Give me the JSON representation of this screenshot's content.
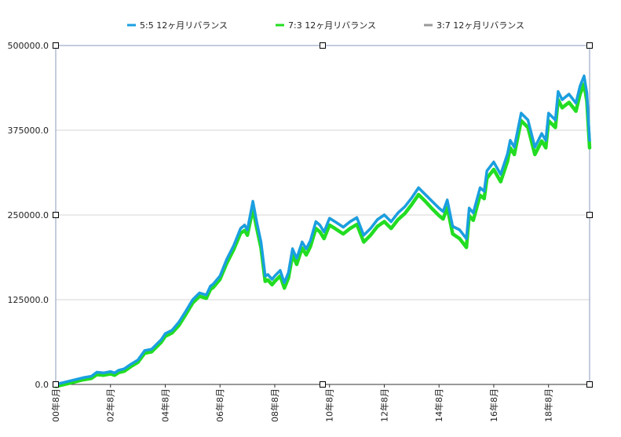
{
  "chart_data": {
    "type": "line",
    "title": "",
    "xlabel": "",
    "ylabel": "",
    "ylim": [
      0,
      500000
    ],
    "y_ticks": [
      0,
      125000,
      250000,
      375000,
      500000
    ],
    "y_tick_labels": [
      "0.0",
      "125000.0",
      "250000.0",
      "375000.0",
      "500000.0"
    ],
    "x_range": [
      0,
      19.5
    ],
    "x_ticks": [
      0,
      2,
      4,
      6,
      8,
      10,
      12,
      14,
      16,
      18
    ],
    "x_tick_labels": [
      "00年8月",
      "02年8月",
      "04年8月",
      "06年8月",
      "08年8月",
      "10年8月",
      "12年8月",
      "14年8月",
      "16年8月",
      "18年8月"
    ],
    "grid": true,
    "legend_position": "top-center",
    "series": [
      {
        "name": "5:5 12ヶ月リバランス",
        "color": "#1a9fe0",
        "x": [
          0,
          0.5,
          1,
          1.3,
          1.5,
          1.75,
          2,
          2.15,
          2.3,
          2.5,
          2.75,
          3,
          3.25,
          3.5,
          3.7,
          3.85,
          4,
          4.25,
          4.5,
          4.75,
          5,
          5.25,
          5.5,
          5.65,
          5.75,
          6,
          6.25,
          6.5,
          6.75,
          6.9,
          7,
          7.2,
          7.35,
          7.5,
          7.65,
          7.75,
          7.9,
          8,
          8.2,
          8.35,
          8.5,
          8.65,
          8.8,
          9,
          9.15,
          9.3,
          9.5,
          9.65,
          9.8,
          10,
          10.2,
          10.5,
          10.75,
          11,
          11.25,
          11.5,
          11.75,
          12,
          12.25,
          12.5,
          12.75,
          13,
          13.25,
          13.5,
          13.75,
          14,
          14.15,
          14.3,
          14.5,
          14.75,
          15,
          15.1,
          15.25,
          15.5,
          15.65,
          15.75,
          16,
          16.25,
          16.5,
          16.6,
          16.75,
          17,
          17.25,
          17.5,
          17.75,
          17.9,
          18,
          18.25,
          18.35,
          18.5,
          18.65,
          18.75,
          19,
          19.15,
          19.3,
          19.4,
          19.5
        ],
        "y": [
          0,
          5000,
          10000,
          12000,
          18000,
          17000,
          19000,
          17000,
          21000,
          23000,
          30000,
          36000,
          50000,
          52000,
          60000,
          66000,
          75000,
          80000,
          92000,
          108000,
          125000,
          135000,
          132000,
          145000,
          148000,
          160000,
          185000,
          205000,
          230000,
          235000,
          228000,
          270000,
          238000,
          210000,
          160000,
          162000,
          155000,
          160000,
          168000,
          150000,
          165000,
          200000,
          186000,
          210000,
          200000,
          212000,
          240000,
          235000,
          225000,
          245000,
          240000,
          232000,
          240000,
          246000,
          220000,
          230000,
          243000,
          250000,
          240000,
          253000,
          262000,
          275000,
          290000,
          280000,
          270000,
          260000,
          255000,
          272000,
          233000,
          228000,
          215000,
          260000,
          253000,
          290000,
          285000,
          315000,
          328000,
          310000,
          340000,
          360000,
          350000,
          400000,
          390000,
          350000,
          370000,
          360000,
          400000,
          390000,
          432000,
          420000,
          425000,
          428000,
          415000,
          440000,
          455000,
          430000,
          360000
        ]
      },
      {
        "name": "7:3 12ヶ月リバランス",
        "color": "#22dd22",
        "x": [
          0,
          0.5,
          1,
          1.3,
          1.5,
          1.75,
          2,
          2.15,
          2.3,
          2.5,
          2.75,
          3,
          3.25,
          3.5,
          3.7,
          3.85,
          4,
          4.25,
          4.5,
          4.75,
          5,
          5.25,
          5.5,
          5.65,
          5.75,
          6,
          6.25,
          6.5,
          6.75,
          6.9,
          7,
          7.2,
          7.35,
          7.5,
          7.65,
          7.75,
          7.9,
          8,
          8.2,
          8.35,
          8.5,
          8.65,
          8.8,
          9,
          9.15,
          9.3,
          9.5,
          9.65,
          9.8,
          10,
          10.2,
          10.5,
          10.75,
          11,
          11.25,
          11.5,
          11.75,
          12,
          12.25,
          12.5,
          12.75,
          13,
          13.25,
          13.5,
          13.75,
          14,
          14.15,
          14.3,
          14.5,
          14.75,
          15,
          15.1,
          15.25,
          15.5,
          15.65,
          15.75,
          16,
          16.25,
          16.5,
          16.6,
          16.75,
          17,
          17.25,
          17.5,
          17.75,
          17.9,
          18,
          18.25,
          18.35,
          18.5,
          18.65,
          18.75,
          19,
          19.15,
          19.3,
          19.4,
          19.5
        ],
        "y": [
          0,
          4800,
          9800,
          11800,
          17500,
          16500,
          18500,
          16500,
          20500,
          22500,
          29500,
          35500,
          49000,
          51000,
          59000,
          65000,
          74000,
          79000,
          90000,
          106000,
          123000,
          133000,
          130000,
          143000,
          146000,
          158000,
          182000,
          202000,
          226000,
          230000,
          223000,
          262000,
          232000,
          204000,
          155000,
          157000,
          150000,
          155000,
          163000,
          145000,
          160000,
          194000,
          180000,
          204000,
          194000,
          206000,
          233000,
          228000,
          218000,
          238000,
          233000,
          225000,
          233000,
          239000,
          213000,
          223000,
          236000,
          243000,
          233000,
          246000,
          255000,
          268000,
          283000,
          273000,
          262000,
          252000,
          247000,
          264000,
          225000,
          218000,
          205000,
          252000,
          245000,
          282000,
          277000,
          307000,
          320000,
          302000,
          332000,
          352000,
          342000,
          392000,
          382000,
          342000,
          362000,
          352000,
          392000,
          382000,
          423000,
          411000,
          416000,
          419000,
          406000,
          431000,
          446000,
          421000,
          352000
        ]
      },
      {
        "name": "3:7 12ヶ月リバランス",
        "color": "#9a9a9a",
        "x": [
          0,
          0.5,
          1,
          1.3,
          1.5,
          1.75,
          2,
          2.15,
          2.3,
          2.5,
          2.75,
          3,
          3.25,
          3.5,
          3.7,
          3.85,
          4,
          4.25,
          4.5,
          4.75,
          5,
          5.25,
          5.5,
          5.65,
          5.75,
          6,
          6.25,
          6.5,
          6.75,
          6.9,
          7,
          7.2,
          7.35,
          7.5,
          7.65,
          7.75,
          7.9,
          8,
          8.2,
          8.35,
          8.5,
          8.65,
          8.8,
          9,
          9.15,
          9.3,
          9.5,
          9.65,
          9.8,
          10,
          10.2,
          10.5,
          10.75,
          11,
          11.25,
          11.5,
          11.75,
          12,
          12.25,
          12.5,
          12.75,
          13,
          13.25,
          13.5,
          13.75,
          14,
          14.15,
          14.3,
          14.5,
          14.75,
          15,
          15.1,
          15.25,
          15.5,
          15.65,
          15.75,
          16,
          16.25,
          16.5,
          16.6,
          16.75,
          17,
          17.25,
          17.5,
          17.75,
          17.9,
          18,
          18.25,
          18.35,
          18.5,
          18.65,
          18.75,
          19,
          19.15,
          19.3,
          19.4,
          19.5
        ],
        "y": [
          0,
          5100,
          10100,
          12100,
          18200,
          17200,
          19200,
          17200,
          21200,
          23200,
          30200,
          36200,
          50300,
          52300,
          60300,
          66300,
          75500,
          80500,
          92500,
          108500,
          125500,
          135500,
          132500,
          145500,
          148500,
          160500,
          185500,
          205500,
          231000,
          236000,
          229000,
          271000,
          239000,
          211000,
          161000,
          163000,
          156000,
          161000,
          169000,
          151000,
          166000,
          201000,
          187000,
          211000,
          201000,
          213000,
          241000,
          236000,
          226000,
          246000,
          241000,
          233000,
          241000,
          247000,
          221000,
          231000,
          244000,
          251000,
          241000,
          254000,
          263000,
          276000,
          291000,
          281000,
          271000,
          261000,
          256000,
          273000,
          234000,
          229000,
          216000,
          261000,
          254000,
          291000,
          286000,
          316000,
          329000,
          311000,
          341000,
          361000,
          351000,
          401000,
          391000,
          351000,
          371000,
          361000,
          401000,
          391000,
          433000,
          421000,
          426000,
          429000,
          416000,
          441000,
          456000,
          431000,
          361000
        ]
      }
    ]
  }
}
